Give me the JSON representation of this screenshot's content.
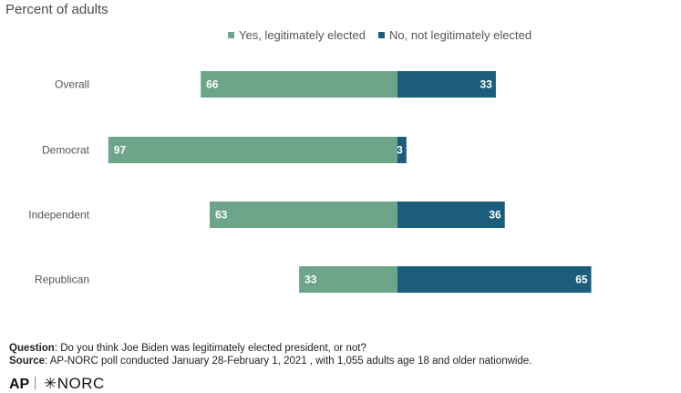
{
  "subtitle": "Percent of adults",
  "colors": {
    "yes": "#6da58a",
    "no": "#1b5d7a"
  },
  "chart_data": {
    "type": "bar",
    "orientation": "horizontal-diverging",
    "categories": [
      "Overall",
      "Democrat",
      "Independent",
      "Republican"
    ],
    "series": [
      {
        "name": "Yes, legitimately elected",
        "values": [
          66,
          97,
          63,
          33
        ]
      },
      {
        "name": "No, not legitimately elected",
        "values": [
          33,
          3,
          36,
          65
        ]
      }
    ],
    "legend": "top",
    "grid": false
  },
  "footnotes": {
    "question_label": "Question",
    "question_text": ": Do you think Joe Biden was legitimately elected president, or not?",
    "source_label": "Source",
    "source_text": ": AP-NORC poll conducted January 28-February 1, 2021 , with 1,055 adults age 18 and older nationwide."
  },
  "logos": {
    "ap": "AP",
    "norc": "✳NORC"
  }
}
